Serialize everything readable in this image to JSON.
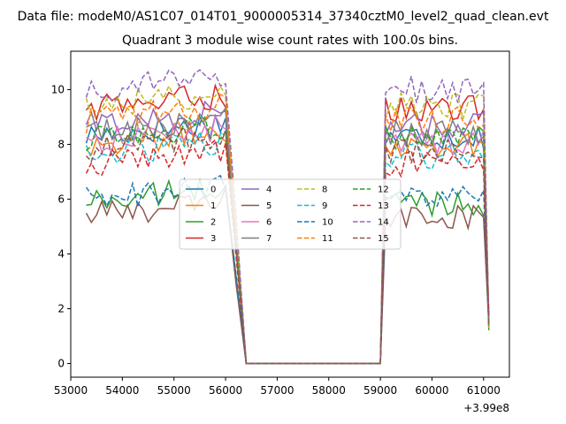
{
  "suptitle": "Data file: modeM0/AS1C07_014T01_9000005314_37340cztM0_level2_quad_clean.evt",
  "chart_data": {
    "type": "line",
    "title": "Quadrant 3 module wise count rates with 100.0s bins.",
    "xlabel": "",
    "ylabel": "",
    "x_offset_label": "+3.99e8",
    "xlim": [
      53000,
      61500
    ],
    "ylim": [
      -0.5,
      11.4
    ],
    "xticks": [
      53000,
      54000,
      55000,
      56000,
      57000,
      58000,
      59000,
      60000,
      61000
    ],
    "xtick_labels": [
      "53000",
      "54000",
      "55000",
      "56000",
      "57000",
      "58000",
      "59000",
      "60000",
      "61000"
    ],
    "yticks": [
      0,
      2,
      4,
      6,
      8,
      10
    ],
    "ytick_labels": [
      "0",
      "2",
      "4",
      "6",
      "8",
      "10"
    ],
    "grid": false,
    "legend_placement": "center",
    "x_segments": {
      "seg1": [
        53300,
        56000
      ],
      "seg1_drop": [
        56000,
        56400
      ],
      "gap": [
        56400,
        59000
      ],
      "seg2": [
        59000,
        61000
      ],
      "seg2_drop": [
        61000,
        61100
      ]
    },
    "series": [
      {
        "name": "0",
        "color": "#1f77b4",
        "dash": "solid",
        "level": 8.3
      },
      {
        "name": "1",
        "color": "#ff7f0e",
        "dash": "solid",
        "level": 8.0
      },
      {
        "name": "2",
        "color": "#2ca02c",
        "dash": "solid",
        "level": 5.9
      },
      {
        "name": "3",
        "color": "#d62728",
        "dash": "solid",
        "level": 9.3
      },
      {
        "name": "4",
        "color": "#9467bd",
        "dash": "solid",
        "level": 8.7
      },
      {
        "name": "5",
        "color": "#8c564b",
        "dash": "solid",
        "level": 5.4
      },
      {
        "name": "6",
        "color": "#e377c2",
        "dash": "solid",
        "level": 8.1
      },
      {
        "name": "7",
        "color": "#7f7f7f",
        "dash": "solid",
        "level": 8.4
      },
      {
        "name": "8",
        "color": "#bcbd22",
        "dash": "dashed",
        "level": 9.4
      },
      {
        "name": "9",
        "color": "#17becf",
        "dash": "dashed",
        "level": 7.6
      },
      {
        "name": "10",
        "color": "#1f77b4",
        "dash": "dashed",
        "level": 6.0
      },
      {
        "name": "11",
        "color": "#ff7f0e",
        "dash": "dashed",
        "level": 8.9
      },
      {
        "name": "12",
        "color": "#2ca02c",
        "dash": "dashed",
        "level": 8.2
      },
      {
        "name": "13",
        "color": "#d62728",
        "dash": "dashed",
        "level": 7.3
      },
      {
        "name": "14",
        "color": "#9467bd",
        "dash": "dashed",
        "level": 10.0
      },
      {
        "name": "15",
        "color": "#8c564b",
        "dash": "dashed",
        "level": 7.8
      }
    ]
  }
}
